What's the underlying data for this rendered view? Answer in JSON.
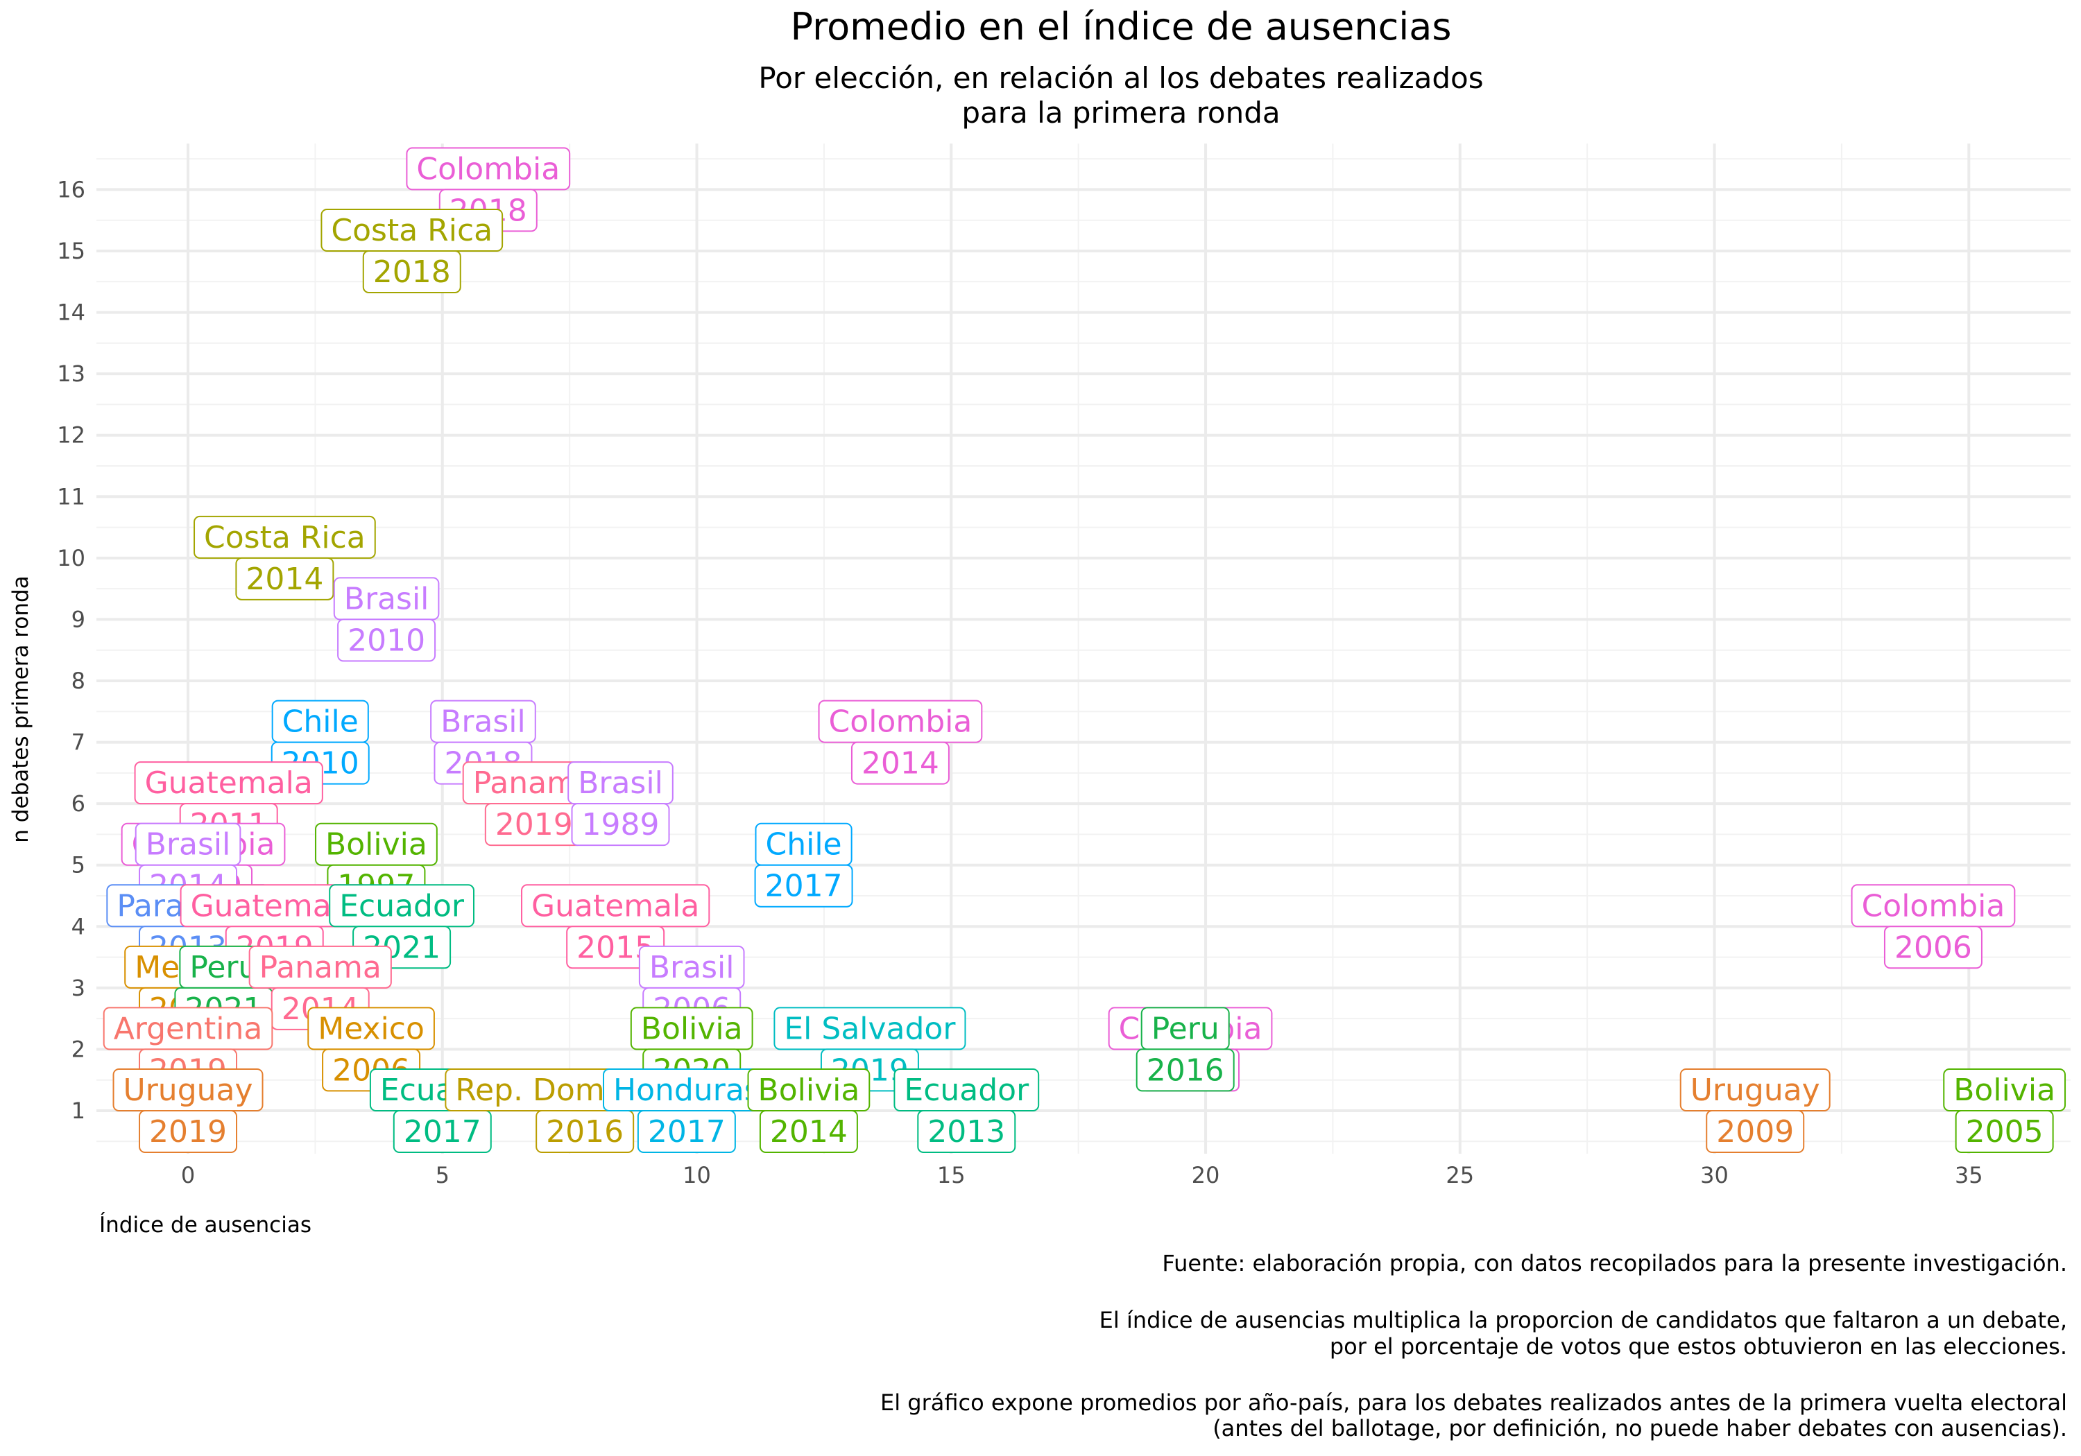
{
  "chart_data": {
    "type": "scatter",
    "title": "Promedio en el índice de ausencias",
    "subtitle": [
      "Por elección, en relación al los debates realizados",
      "para la primera ronda"
    ],
    "xlabel": "Índice de ausencias",
    "ylabel": "n debates primera ronda",
    "xlim": [
      -1.8,
      37.0
    ],
    "ylim": [
      0.3,
      16.75
    ],
    "x_ticks": [
      0,
      5,
      10,
      15,
      20,
      25,
      30,
      35
    ],
    "y_ticks": [
      1,
      2,
      3,
      4,
      5,
      6,
      7,
      8,
      9,
      10,
      11,
      12,
      13,
      14,
      15,
      16
    ],
    "grid": true,
    "legend": "none",
    "caption": [
      "Fuente: elaboración propia, con datos recopilados para la presente investigación.",
      "",
      "El índice de ausencias multiplica la proporcion de candidatos que faltaron a un debate,",
      "por el porcentaje de votos que estos obtuvieron en las elecciones.",
      "",
      "El gráfico expone promedios por año-país, para los debates realizados antes de la primera vuelta electoral",
      "(antes del ballotage, por definición, no puede haber debates con ausencias)."
    ],
    "colors": {
      "Argentina": "#f8766d",
      "Bolivia": "#53b400",
      "Brasil": "#c77cff",
      "Chile": "#00a9ff",
      "Colombia": "#ea5ed6",
      "Costa Rica": "#a3a500",
      "Ecuador": "#00bc82",
      "El Salvador": "#00bdc2",
      "Guatemala": "#ff5fa0",
      "Honduras": "#00b5e5",
      "Mexico": "#d89000",
      "Panama": "#ff6a90",
      "Paraguay": "#5b8ef5",
      "Peru": "#18b24a",
      "Rep. Dominicana": "#bb9d00",
      "Uruguay": "#e57f2f"
    },
    "points": [
      {
        "country": "Colombia",
        "year": "2018",
        "x": 5.9,
        "y": 16
      },
      {
        "country": "Costa Rica",
        "year": "2018",
        "x": 4.4,
        "y": 15
      },
      {
        "country": "Costa Rica",
        "year": "2014",
        "x": 1.9,
        "y": 10
      },
      {
        "country": "Brasil",
        "year": "2010",
        "x": 3.9,
        "y": 9
      },
      {
        "country": "Chile",
        "year": "2010",
        "x": 2.6,
        "y": 7
      },
      {
        "country": "Brasil",
        "year": "2018",
        "x": 5.8,
        "y": 7
      },
      {
        "country": "Colombia",
        "year": "2014",
        "x": 14.0,
        "y": 7
      },
      {
        "country": "Guatemala",
        "year": "2011",
        "x": 0.8,
        "y": 6
      },
      {
        "country": "Panama",
        "year": "2019",
        "x": 6.8,
        "y": 6
      },
      {
        "country": "Brasil",
        "year": "1989",
        "x": 8.5,
        "y": 6
      },
      {
        "country": "Colombia",
        "year": "2010",
        "x": 0.3,
        "y": 5
      },
      {
        "country": "Brasil",
        "year": "2014",
        "x": 0.0,
        "y": 5
      },
      {
        "country": "Bolivia",
        "year": "1997",
        "x": 3.7,
        "y": 5
      },
      {
        "country": "Chile",
        "year": "2017",
        "x": 12.1,
        "y": 5
      },
      {
        "country": "Paraguay",
        "year": "2013",
        "x": 0.0,
        "y": 4
      },
      {
        "country": "Guatemala",
        "year": "2019",
        "x": 1.7,
        "y": 4
      },
      {
        "country": "Ecuador",
        "year": "2021",
        "x": 4.2,
        "y": 4
      },
      {
        "country": "Guatemala",
        "year": "2015",
        "x": 8.4,
        "y": 4
      },
      {
        "country": "Colombia",
        "year": "2006",
        "x": 34.3,
        "y": 4
      },
      {
        "country": "Mexico",
        "year": "2012",
        "x": 0.0,
        "y": 3
      },
      {
        "country": "Peru",
        "year": "2021",
        "x": 0.7,
        "y": 3
      },
      {
        "country": "Panama",
        "year": "2014",
        "x": 2.6,
        "y": 3
      },
      {
        "country": "Brasil",
        "year": "2006",
        "x": 9.9,
        "y": 3
      },
      {
        "country": "Argentina",
        "year": "2019",
        "x": 0.0,
        "y": 2
      },
      {
        "country": "Mexico",
        "year": "2006",
        "x": 3.6,
        "y": 2
      },
      {
        "country": "Bolivia",
        "year": "2020",
        "x": 9.9,
        "y": 2
      },
      {
        "country": "El Salvador",
        "year": "2019",
        "x": 13.4,
        "y": 2
      },
      {
        "country": "Colombia",
        "year": "2002",
        "x": 19.7,
        "y": 2
      },
      {
        "country": "Peru",
        "year": "2016",
        "x": 19.6,
        "y": 2
      },
      {
        "country": "Uruguay",
        "year": "2019",
        "x": 0.0,
        "y": 1
      },
      {
        "country": "Ecuador",
        "year": "2017",
        "x": 5.0,
        "y": 1
      },
      {
        "country": "Rep. Dominicana",
        "year": "2016",
        "x": 7.8,
        "y": 1
      },
      {
        "country": "Honduras",
        "year": "2017",
        "x": 9.8,
        "y": 1
      },
      {
        "country": "Bolivia",
        "year": "2014",
        "x": 12.2,
        "y": 1
      },
      {
        "country": "Ecuador",
        "year": "2013",
        "x": 15.3,
        "y": 1
      },
      {
        "country": "Uruguay",
        "year": "2009",
        "x": 30.8,
        "y": 1
      },
      {
        "country": "Bolivia",
        "year": "2005",
        "x": 35.7,
        "y": 1
      }
    ]
  }
}
